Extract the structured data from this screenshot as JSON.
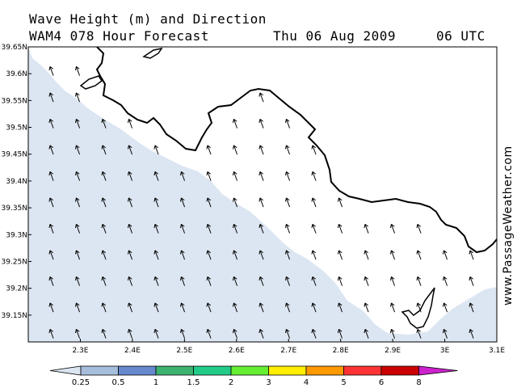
{
  "header": {
    "title": "Wave Height (m) and Direction",
    "model": "WAM4 078 Hour Forecast",
    "date": "Thu 06 Aug 2009",
    "time": "06 UTC"
  },
  "watermark": "www.PassageWeather.com",
  "chart_data": {
    "type": "map",
    "lat_ticks": [
      "39.65N",
      "39.6N",
      "39.55N",
      "39.5N",
      "39.45N",
      "39.4N",
      "39.35N",
      "39.3N",
      "39.25N",
      "39.2N",
      "39.15N"
    ],
    "lat_values": [
      39.65,
      39.6,
      39.55,
      39.5,
      39.45,
      39.4,
      39.35,
      39.3,
      39.25,
      39.2,
      39.15
    ],
    "lon_ticks": [
      "2.3E",
      "2.4E",
      "2.5E",
      "2.6E",
      "2.7E",
      "2.8E",
      "2.9E",
      "3E",
      "3.1E"
    ],
    "lon_values": [
      2.3,
      2.4,
      2.5,
      2.6,
      2.7,
      2.8,
      2.9,
      3.0,
      3.1
    ],
    "lon_range": [
      2.2,
      3.1
    ],
    "lat_range": [
      39.1,
      39.65
    ],
    "wave_direction": "from SSE (arrows pointing NNW)",
    "offshore_height_band": "0.25-0.5",
    "nearshore_height_band": "below 0.25",
    "legend": {
      "labels": [
        "0.25",
        "0.5",
        "1",
        "1.5",
        "2",
        "3",
        "4",
        "5",
        "6",
        "8"
      ],
      "colors": [
        "#dbe5f2",
        "#a6bddb",
        "#6688cc",
        "#3cb371",
        "#22cc88",
        "#66ee33",
        "#ffee00",
        "#ff9900",
        "#ff3333",
        "#cc0000",
        "#cc22cc"
      ]
    }
  }
}
